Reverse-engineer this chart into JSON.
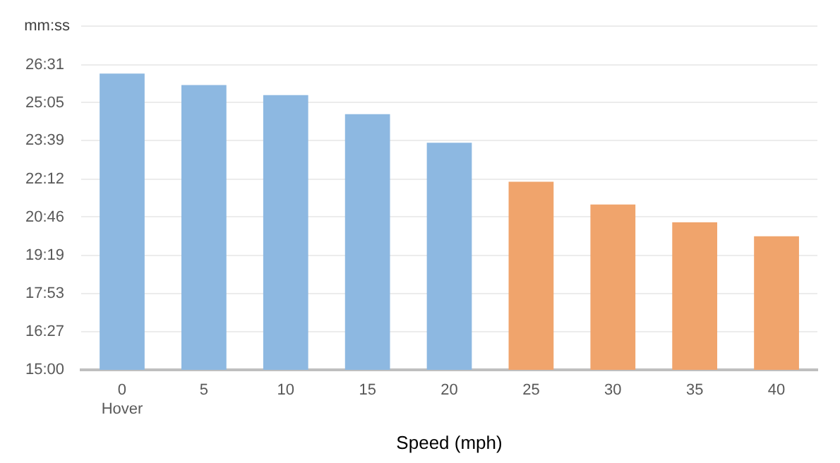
{
  "chart_data": {
    "type": "bar",
    "xlabel": "Speed (mph)",
    "ylabel": "mm:ss",
    "categories": [
      "0\nHover",
      "5",
      "10",
      "15",
      "20",
      "25",
      "30",
      "35",
      "40"
    ],
    "values": [
      26.18,
      25.75,
      25.37,
      24.65,
      23.57,
      22.1,
      21.24,
      20.57,
      20.04
    ],
    "colors": [
      "#8db8e1",
      "#8db8e1",
      "#8db8e1",
      "#8db8e1",
      "#8db8e1",
      "#f0a46c",
      "#f0a46c",
      "#f0a46c",
      "#f0a46c"
    ],
    "ylim": [
      15,
      27.967
    ],
    "yticks": [
      {
        "value": 15,
        "label": "15:00"
      },
      {
        "value": 16.45,
        "label": "16:27"
      },
      {
        "value": 17.883,
        "label": "17:53"
      },
      {
        "value": 19.317,
        "label": "19:19"
      },
      {
        "value": 20.767,
        "label": "20:46"
      },
      {
        "value": 22.2,
        "label": "22:12"
      },
      {
        "value": 23.65,
        "label": "23:39"
      },
      {
        "value": 25.083,
        "label": "25:05"
      },
      {
        "value": 26.517,
        "label": "26:31"
      },
      {
        "value": 27.967,
        "label": null
      }
    ],
    "grid": "y",
    "legend": false
  }
}
